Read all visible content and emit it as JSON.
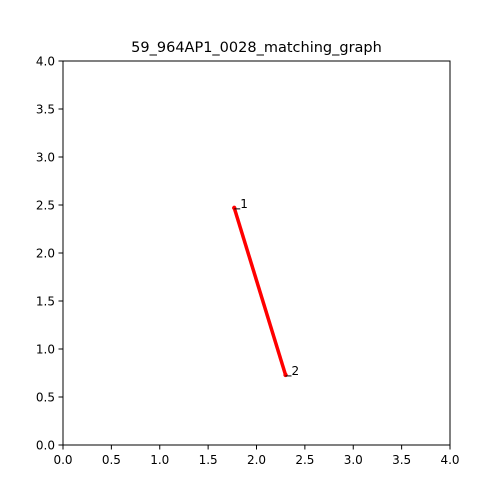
{
  "chart_data": {
    "type": "line",
    "title": "59_964AP1_0028_matching_graph",
    "xlabel": "",
    "ylabel": "",
    "xlim": [
      0.0,
      4.0
    ],
    "ylim": [
      0.0,
      4.0
    ],
    "x_ticks": [
      "0.0",
      "0.5",
      "1.0",
      "1.5",
      "2.0",
      "2.5",
      "3.0",
      "3.5",
      "4.0"
    ],
    "y_ticks": [
      "0.0",
      "0.5",
      "1.0",
      "1.5",
      "2.0",
      "2.5",
      "3.0",
      "3.5",
      "4.0"
    ],
    "grid": false,
    "nodes": [
      {
        "label": "1",
        "x": 1.77,
        "y": 2.47
      },
      {
        "label": "2",
        "x": 2.3,
        "y": 0.73
      }
    ],
    "edges": [
      {
        "from": 0,
        "to": 1,
        "color": "#ff0000"
      }
    ],
    "edge_color": "#ff0000",
    "node_color": "#ff0000"
  }
}
